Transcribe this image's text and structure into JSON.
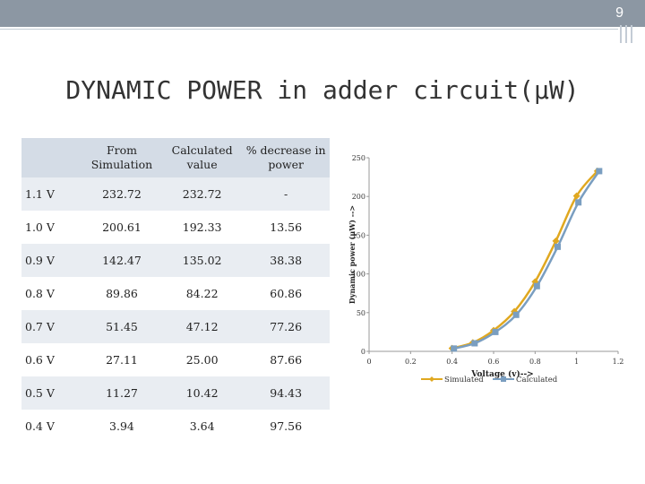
{
  "page_number": "9",
  "title": "DYNAMIC POWER in adder circuit(µW)",
  "table": {
    "headers": [
      "",
      "From Simulation",
      "Calculated value",
      "% decrease in power"
    ],
    "rows": [
      [
        "1.1 V",
        "232.72",
        "232.72",
        "-"
      ],
      [
        "1.0 V",
        "200.61",
        "192.33",
        "13.56"
      ],
      [
        "0.9 V",
        "142.47",
        "135.02",
        "38.38"
      ],
      [
        "0.8 V",
        "89.86",
        "84.22",
        "60.86"
      ],
      [
        "0.7 V",
        "51.45",
        "47.12",
        "77.26"
      ],
      [
        "0.6 V",
        "27.11",
        "25.00",
        "87.66"
      ],
      [
        "0.5 V",
        "11.27",
        "10.42",
        "94.43"
      ],
      [
        "0.4 V",
        "3.94",
        "3.64",
        "97.56"
      ]
    ]
  },
  "colors": {
    "simulated": "#e0a820",
    "calculated": "#7a9ec0",
    "header_bg": "#d4dce6",
    "band_bg": "#e9edf2",
    "topbar": "#8c97a3"
  },
  "chart_data": {
    "type": "line",
    "xlabel": "Voltage (v)-->",
    "ylabel": "Dynamic power (µW) -->",
    "xlim": [
      0,
      1.2
    ],
    "ylim": [
      0,
      250
    ],
    "x_ticks": [
      "0",
      "0.2",
      "0.4",
      "0.6",
      "0.8",
      "1",
      "1.2"
    ],
    "y_ticks": [
      "0",
      "50",
      "100",
      "150",
      "200",
      "250"
    ],
    "legend_position": "bottom",
    "series": [
      {
        "name": "Simulated",
        "marker": "diamond",
        "x": [
          0.4,
          0.5,
          0.6,
          0.7,
          0.8,
          0.9,
          1.0,
          1.1
        ],
        "y": [
          3.94,
          11.27,
          27.11,
          51.45,
          89.86,
          142.47,
          200.61,
          232.72
        ]
      },
      {
        "name": "Calculated",
        "marker": "square",
        "x": [
          0.4,
          0.5,
          0.6,
          0.7,
          0.8,
          0.9,
          1.0,
          1.1
        ],
        "y": [
          3.64,
          10.42,
          25.0,
          47.12,
          84.22,
          135.02,
          192.33,
          232.72
        ]
      }
    ]
  }
}
